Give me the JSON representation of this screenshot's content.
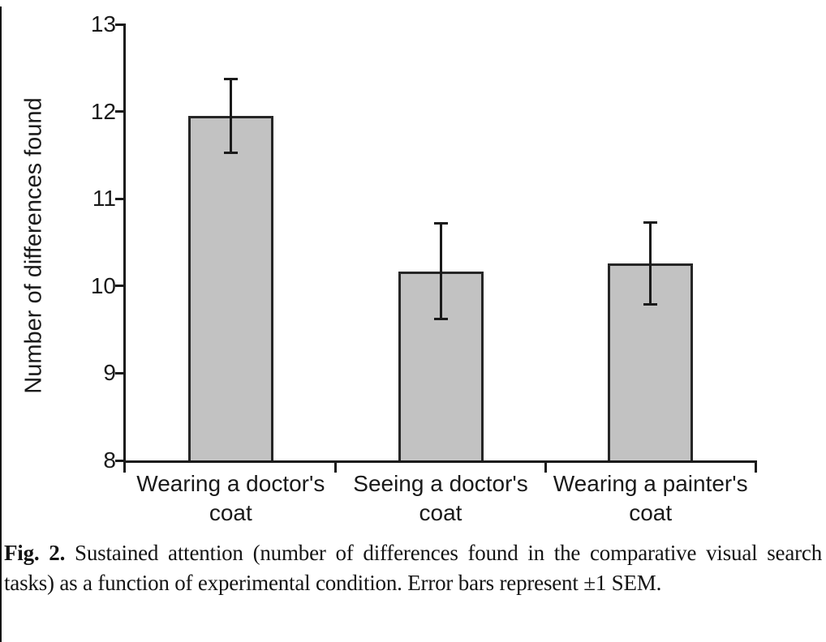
{
  "caption": {
    "label": "Fig. 2.",
    "text": "Sustained attention (number of differences found in the comparative visual search tasks) as a function of experimental condition. Error bars represent ±1 SEM."
  },
  "chart_data": {
    "type": "bar",
    "title": "",
    "xlabel": "",
    "ylabel": "Number of differences found",
    "ylim": [
      8,
      13
    ],
    "yticks": [
      13,
      12,
      11,
      10,
      9,
      8
    ],
    "grid": false,
    "legend": false,
    "categories": [
      "Wearing a doctor's coat",
      "Seeing a doctor's coat",
      "Wearing a painter's coat"
    ],
    "category_label_lines": [
      [
        "Wearing a doctor's",
        "coat"
      ],
      [
        "Seeing a doctor's",
        "coat"
      ],
      [
        "Wearing a painter's",
        "coat"
      ]
    ],
    "values": [
      11.95,
      10.17,
      10.26
    ],
    "error_sem": [
      0.42,
      0.55,
      0.47
    ],
    "error_note": "±1 SEM",
    "bar_fill": "#c2c2c2",
    "bar_border": "#262626",
    "axis_color": "#1a1a1a"
  }
}
